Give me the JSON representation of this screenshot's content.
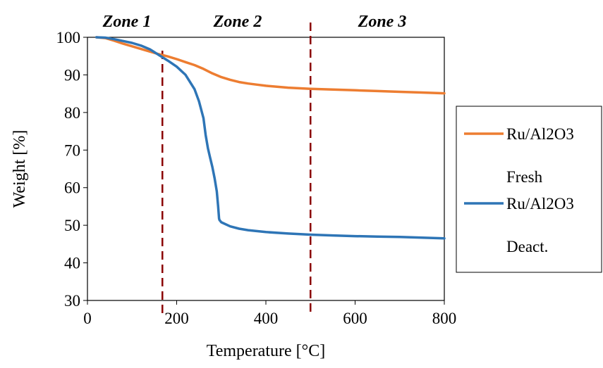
{
  "chart_data": {
    "type": "line",
    "xlabel": "Temperature [°C]",
    "ylabel": "Weight [%]",
    "xlim": [
      0,
      800
    ],
    "ylim": [
      30,
      100
    ],
    "xticks": [
      0,
      200,
      400,
      600,
      800
    ],
    "yticks": [
      30,
      40,
      50,
      60,
      70,
      80,
      90,
      100
    ],
    "grid": false,
    "legend_position": "right",
    "zones": [
      "Zone 1",
      "Zone 2",
      "Zone 3"
    ],
    "zone_boundaries": [
      168,
      500
    ],
    "zone_line_color": "#8B0000",
    "series": [
      {
        "name": "Ru/Al2O3 Fresh",
        "legend_lines": [
          "Ru/Al2O3",
          "Fresh"
        ],
        "color": "#ED7D31",
        "x": [
          20,
          40,
          60,
          80,
          100,
          120,
          140,
          160,
          180,
          200,
          220,
          240,
          260,
          280,
          300,
          320,
          340,
          360,
          380,
          400,
          450,
          500,
          550,
          600,
          650,
          700,
          750,
          800
        ],
        "y": [
          100,
          99.8,
          99.1,
          98.3,
          97.6,
          96.9,
          96.2,
          95.5,
          94.9,
          94.2,
          93.4,
          92.6,
          91.6,
          90.4,
          89.4,
          88.7,
          88.1,
          87.7,
          87.4,
          87.1,
          86.6,
          86.3,
          86.1,
          85.9,
          85.7,
          85.5,
          85.3,
          85.1
        ]
      },
      {
        "name": "Ru/Al2O3 Deact.",
        "legend_lines": [
          "Ru/Al2O3",
          "Deact."
        ],
        "color": "#2E75B6",
        "x": [
          20,
          40,
          60,
          80,
          100,
          120,
          140,
          160,
          180,
          200,
          220,
          240,
          250,
          260,
          265,
          270,
          275,
          280,
          285,
          290,
          293,
          295,
          296,
          300,
          320,
          340,
          360,
          400,
          450,
          500,
          550,
          600,
          650,
          700,
          750,
          800
        ],
        "y": [
          100,
          99.9,
          99.5,
          99.0,
          98.5,
          97.8,
          96.8,
          95.3,
          93.8,
          92.2,
          90.0,
          86.2,
          83.0,
          78.5,
          74.0,
          70.5,
          68.0,
          65.5,
          62.5,
          59.0,
          55.0,
          51.8,
          51.4,
          50.8,
          49.7,
          49.1,
          48.7,
          48.2,
          47.8,
          47.5,
          47.3,
          47.1,
          47.0,
          46.9,
          46.7,
          46.5
        ]
      }
    ]
  }
}
